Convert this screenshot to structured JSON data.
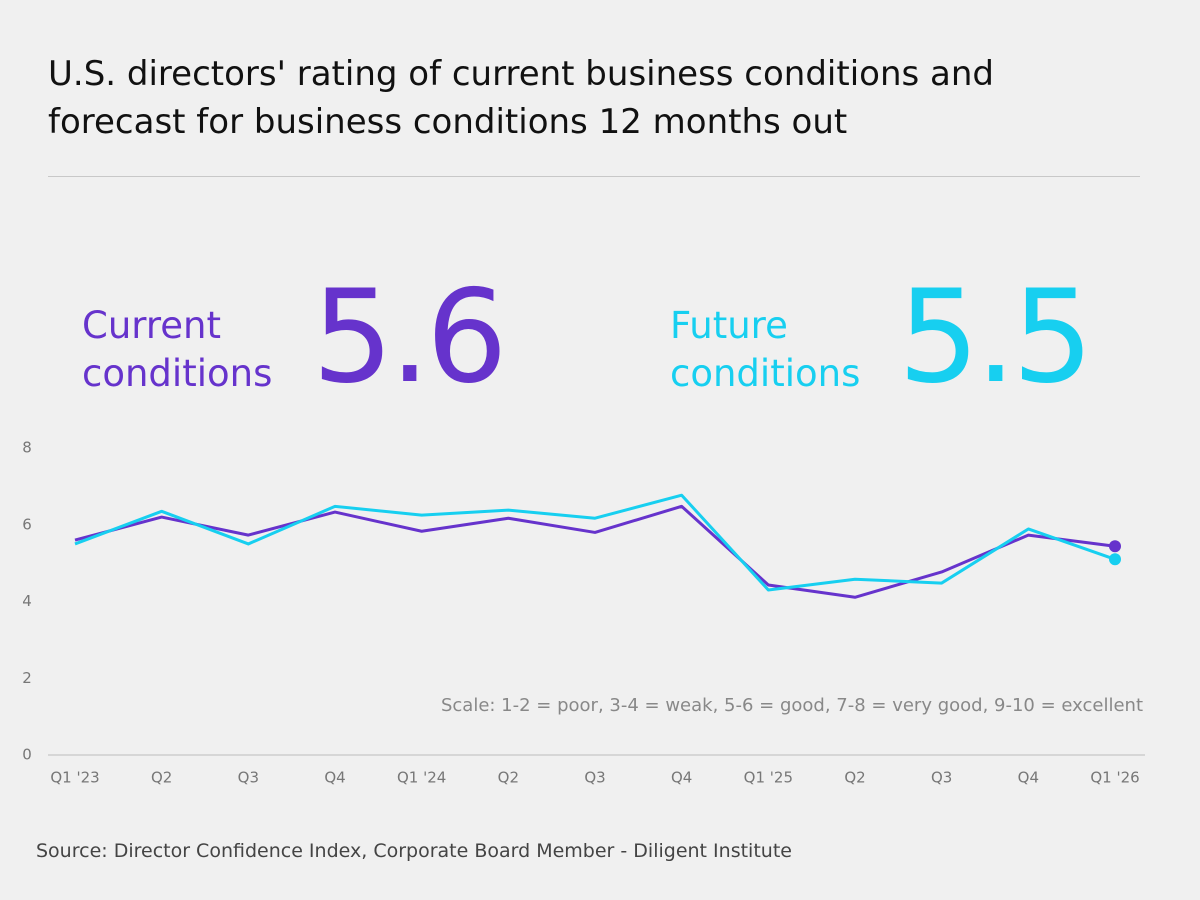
{
  "chart_data": {
    "type": "line",
    "title": "U.S. directors' rating of current business conditions and forecast for business conditions 12 months out",
    "callouts": [
      {
        "label": "Current conditions",
        "value": 5.6,
        "color": "#6633cc"
      },
      {
        "label": "Future conditions",
        "value": 5.5,
        "color": "#17cff0"
      }
    ],
    "categories": [
      "Q1 '23",
      "Q2",
      "Q3",
      "Q4",
      "Q1 '24",
      "Q2",
      "Q3",
      "Q4",
      "Q1 '25",
      "Q2",
      "Q3",
      "Q4",
      "Q1 '26"
    ],
    "series": [
      {
        "name": "Current conditions",
        "color": "#6633cc",
        "values": [
          5.6,
          6.2,
          5.73,
          6.33,
          5.83,
          6.17,
          5.8,
          6.48,
          4.43,
          4.11,
          4.77,
          5.73,
          5.44
        ]
      },
      {
        "name": "Future conditions",
        "color": "#17cff0",
        "values": [
          5.5,
          6.35,
          5.5,
          6.48,
          6.25,
          6.38,
          6.17,
          6.77,
          4.3,
          4.58,
          4.48,
          5.89,
          5.1
        ]
      }
    ],
    "ylim": [
      0,
      8
    ],
    "yticks": [
      0,
      2,
      4,
      6,
      8
    ],
    "grid": false,
    "annotation": "Scale: 1-2 = poor, 3-4 = weak, 5-6 = good, 7-8 = very good, 9-10 = excellent",
    "source": "Source: Director Confidence Index, Corporate Board Member - Diligent Institute"
  }
}
